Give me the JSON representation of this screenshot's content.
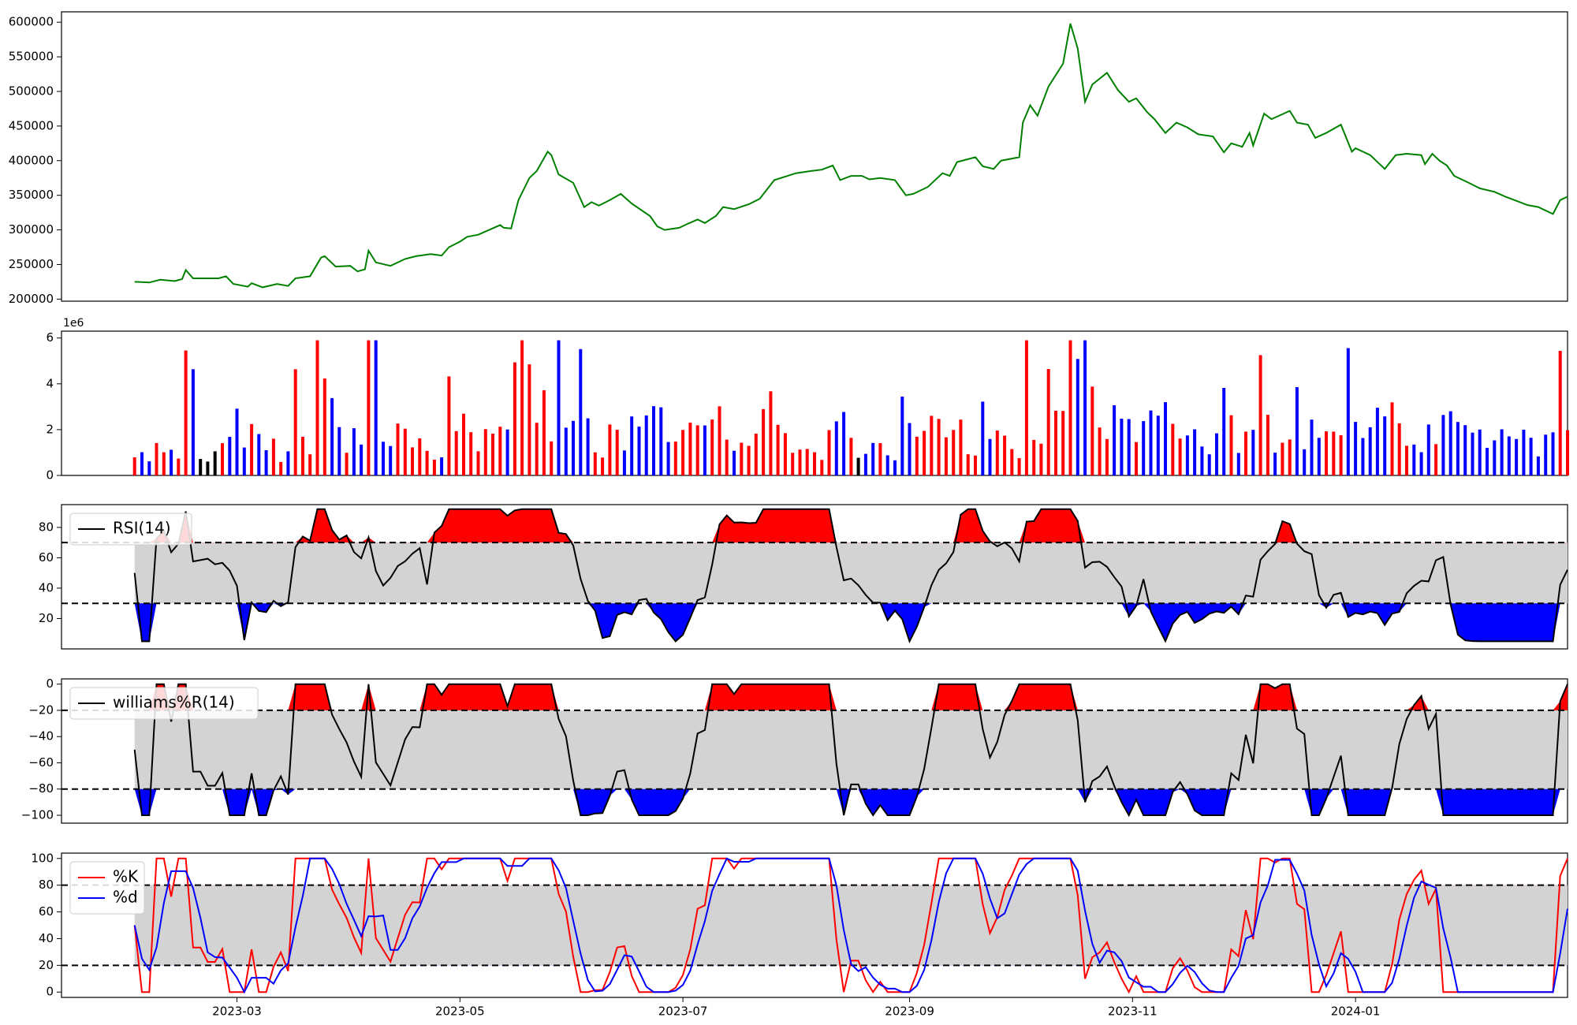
{
  "chart_data": {
    "type": "multi-panel",
    "x_range": [
      "2023-01-12",
      "2024-02-28"
    ],
    "x_ticks": [
      "2023-03",
      "2023-05",
      "2023-07",
      "2023-09",
      "2023-11",
      "2024-01"
    ],
    "x_tick_dates": [
      "2023-03-01",
      "2023-05-01",
      "2023-07-01",
      "2023-09-01",
      "2023-11-01",
      "2024-01-01"
    ],
    "colors": {
      "price": "#008000",
      "up": "#ff0000",
      "down": "#0000ff",
      "neutral": "#000000",
      "band": "#d3d3d3"
    },
    "panels": [
      {
        "name": "price",
        "type": "line",
        "ylim": [
          197000,
          615000
        ],
        "yticks": [
          200000,
          250000,
          300000,
          350000,
          400000,
          450000,
          500000,
          550000,
          600000
        ],
        "ytick_labels": [
          "200000",
          "250000",
          "300000",
          "350000",
          "400000",
          "450000",
          "500000",
          "550000",
          "600000"
        ],
        "series": [
          {
            "values": [
              [
                "2023-02-01",
                225000
              ],
              [
                "2023-02-05",
                224000
              ],
              [
                "2023-02-08",
                228000
              ],
              [
                "2023-02-12",
                226000
              ],
              [
                "2023-02-14",
                229000
              ],
              [
                "2023-02-15",
                242000
              ],
              [
                "2023-02-17",
                230000
              ],
              [
                "2023-02-21",
                230000
              ],
              [
                "2023-02-24",
                230000
              ],
              [
                "2023-02-26",
                233000
              ],
              [
                "2023-02-28",
                222000
              ],
              [
                "2023-03-04",
                218000
              ],
              [
                "2023-03-05",
                223000
              ],
              [
                "2023-03-08",
                217000
              ],
              [
                "2023-03-12",
                222000
              ],
              [
                "2023-03-15",
                219000
              ],
              [
                "2023-03-17",
                230000
              ],
              [
                "2023-03-21",
                233000
              ],
              [
                "2023-03-24",
                260000
              ],
              [
                "2023-03-25",
                262000
              ],
              [
                "2023-03-28",
                247000
              ],
              [
                "2023-04-01",
                248000
              ],
              [
                "2023-04-03",
                240000
              ],
              [
                "2023-04-05",
                243000
              ],
              [
                "2023-04-06",
                270000
              ],
              [
                "2023-04-08",
                253000
              ],
              [
                "2023-04-12",
                248000
              ],
              [
                "2023-04-16",
                258000
              ],
              [
                "2023-04-19",
                262000
              ],
              [
                "2023-04-23",
                265000
              ],
              [
                "2023-04-26",
                263000
              ],
              [
                "2023-04-28",
                275000
              ],
              [
                "2023-05-01",
                283000
              ],
              [
                "2023-05-03",
                290000
              ],
              [
                "2023-05-06",
                293000
              ],
              [
                "2023-05-09",
                300000
              ],
              [
                "2023-05-12",
                307000
              ],
              [
                "2023-05-13",
                303000
              ],
              [
                "2023-05-15",
                302000
              ],
              [
                "2023-05-17",
                343000
              ],
              [
                "2023-05-20",
                375000
              ],
              [
                "2023-05-22",
                385000
              ],
              [
                "2023-05-25",
                413000
              ],
              [
                "2023-05-26",
                408000
              ],
              [
                "2023-05-28",
                380000
              ],
              [
                "2023-06-01",
                368000
              ],
              [
                "2023-06-04",
                333000
              ],
              [
                "2023-06-06",
                340000
              ],
              [
                "2023-06-08",
                335000
              ],
              [
                "2023-06-11",
                343000
              ],
              [
                "2023-06-14",
                352000
              ],
              [
                "2023-06-17",
                338000
              ],
              [
                "2023-06-22",
                320000
              ],
              [
                "2023-06-24",
                305000
              ],
              [
                "2023-06-26",
                300000
              ],
              [
                "2023-06-30",
                303000
              ],
              [
                "2023-07-02",
                308000
              ],
              [
                "2023-07-05",
                315000
              ],
              [
                "2023-07-07",
                310000
              ],
              [
                "2023-07-10",
                320000
              ],
              [
                "2023-07-12",
                333000
              ],
              [
                "2023-07-15",
                330000
              ],
              [
                "2023-07-19",
                337000
              ],
              [
                "2023-07-22",
                345000
              ],
              [
                "2023-07-26",
                372000
              ],
              [
                "2023-08-01",
                382000
              ],
              [
                "2023-08-05",
                385000
              ],
              [
                "2023-08-08",
                387000
              ],
              [
                "2023-08-11",
                393000
              ],
              [
                "2023-08-13",
                372000
              ],
              [
                "2023-08-16",
                378000
              ],
              [
                "2023-08-19",
                378000
              ],
              [
                "2023-08-21",
                373000
              ],
              [
                "2023-08-24",
                375000
              ],
              [
                "2023-08-28",
                372000
              ],
              [
                "2023-08-31",
                350000
              ],
              [
                "2023-09-02",
                352000
              ],
              [
                "2023-09-06",
                362000
              ],
              [
                "2023-09-10",
                382000
              ],
              [
                "2023-09-12",
                378000
              ],
              [
                "2023-09-14",
                398000
              ],
              [
                "2023-09-19",
                405000
              ],
              [
                "2023-09-21",
                392000
              ],
              [
                "2023-09-24",
                388000
              ],
              [
                "2023-09-26",
                400000
              ],
              [
                "2023-10-01",
                405000
              ],
              [
                "2023-10-02",
                455000
              ],
              [
                "2023-10-04",
                480000
              ],
              [
                "2023-10-06",
                465000
              ],
              [
                "2023-10-09",
                507000
              ],
              [
                "2023-10-13",
                540000
              ],
              [
                "2023-10-15",
                598000
              ],
              [
                "2023-10-17",
                562000
              ],
              [
                "2023-10-19",
                485000
              ],
              [
                "2023-10-21",
                510000
              ],
              [
                "2023-10-25",
                527000
              ],
              [
                "2023-10-28",
                502000
              ],
              [
                "2023-10-31",
                485000
              ],
              [
                "2023-11-02",
                490000
              ],
              [
                "2023-11-05",
                470000
              ],
              [
                "2023-11-07",
                460000
              ],
              [
                "2023-11-10",
                440000
              ],
              [
                "2023-11-13",
                455000
              ],
              [
                "2023-11-16",
                448000
              ],
              [
                "2023-11-19",
                438000
              ],
              [
                "2023-11-23",
                435000
              ],
              [
                "2023-11-26",
                412000
              ],
              [
                "2023-11-28",
                425000
              ],
              [
                "2023-12-01",
                420000
              ],
              [
                "2023-12-03",
                440000
              ],
              [
                "2023-12-04",
                422000
              ],
              [
                "2023-12-07",
                468000
              ],
              [
                "2023-12-09",
                460000
              ],
              [
                "2023-12-14",
                472000
              ],
              [
                "2023-12-16",
                455000
              ],
              [
                "2023-12-19",
                452000
              ],
              [
                "2023-12-21",
                433000
              ],
              [
                "2023-12-24",
                440000
              ],
              [
                "2023-12-28",
                452000
              ],
              [
                "2023-12-31",
                413000
              ],
              [
                "2024-01-01",
                418000
              ],
              [
                "2024-01-05",
                408000
              ],
              [
                "2024-01-09",
                388000
              ],
              [
                "2024-01-12",
                408000
              ],
              [
                "2024-01-15",
                410000
              ],
              [
                "2024-01-19",
                408000
              ],
              [
                "2024-01-20",
                395000
              ],
              [
                "2024-01-22",
                410000
              ],
              [
                "2024-01-24",
                400000
              ],
              [
                "2024-01-26",
                393000
              ],
              [
                "2024-01-28",
                378000
              ],
              [
                "2024-02-01",
                368000
              ],
              [
                "2024-02-04",
                360000
              ],
              [
                "2024-02-08",
                355000
              ],
              [
                "2024-02-11",
                348000
              ],
              [
                "2024-02-14",
                342000
              ],
              [
                "2024-02-17",
                336000
              ],
              [
                "2024-02-20",
                333000
              ],
              [
                "2024-02-24",
                323000
              ],
              [
                "2024-02-26",
                343000
              ],
              [
                "2024-02-28",
                348000
              ]
            ]
          }
        ]
      }
    ]
  },
  "panel_labels": {
    "volume_exponent": "1e6",
    "rsi_legend": "RSI(14)",
    "williams_legend": "williams%R(14)",
    "stoch_k_legend": "%K",
    "stoch_d_legend": "%d"
  }
}
